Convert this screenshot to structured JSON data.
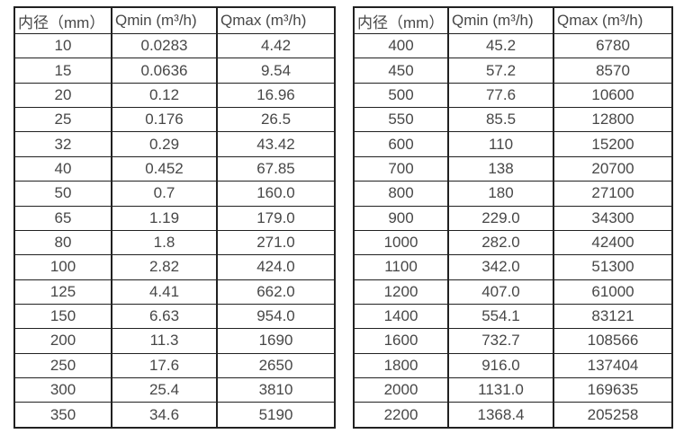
{
  "colors": {
    "background": "#ffffff",
    "border": "#212121",
    "text": "#474747"
  },
  "tables": {
    "left": {
      "headers": [
        "内径（mm）",
        "Qmin (m³/h)",
        "Qmax (m³/h)"
      ],
      "rows": [
        [
          "10",
          "0.0283",
          "4.42"
        ],
        [
          "15",
          "0.0636",
          "9.54"
        ],
        [
          "20",
          "0.12",
          "16.96"
        ],
        [
          "25",
          "0.176",
          "26.5"
        ],
        [
          "32",
          "0.29",
          "43.42"
        ],
        [
          "40",
          "0.452",
          "67.85"
        ],
        [
          "50",
          "0.7",
          "160.0"
        ],
        [
          "65",
          "1.19",
          "179.0"
        ],
        [
          "80",
          "1.8",
          "271.0"
        ],
        [
          "100",
          "2.82",
          "424.0"
        ],
        [
          "125",
          "4.41",
          "662.0"
        ],
        [
          "150",
          "6.63",
          "954.0"
        ],
        [
          "200",
          "11.3",
          "1690"
        ],
        [
          "250",
          "17.6",
          "2650"
        ],
        [
          "300",
          "25.4",
          "3810"
        ],
        [
          "350",
          "34.6",
          "5190"
        ]
      ]
    },
    "right": {
      "headers": [
        "内径（mm）",
        "Qmin (m³/h)",
        "Qmax (m³/h)"
      ],
      "rows": [
        [
          "400",
          "45.2",
          "6780"
        ],
        [
          "450",
          "57.2",
          "8570"
        ],
        [
          "500",
          "77.6",
          "10600"
        ],
        [
          "550",
          "85.5",
          "12800"
        ],
        [
          "600",
          "110",
          "15200"
        ],
        [
          "700",
          "138",
          "20700"
        ],
        [
          "800",
          "180",
          "27100"
        ],
        [
          "900",
          "229.0",
          "34300"
        ],
        [
          "1000",
          "282.0",
          "42400"
        ],
        [
          "1100",
          "342.0",
          "51300"
        ],
        [
          "1200",
          "407.0",
          "61000"
        ],
        [
          "1400",
          "554.1",
          "83121"
        ],
        [
          "1600",
          "732.7",
          "108566"
        ],
        [
          "1800",
          "916.0",
          "137404"
        ],
        [
          "2000",
          "1131.0",
          "169635"
        ],
        [
          "2200",
          "1368.4",
          "205258"
        ]
      ]
    }
  }
}
